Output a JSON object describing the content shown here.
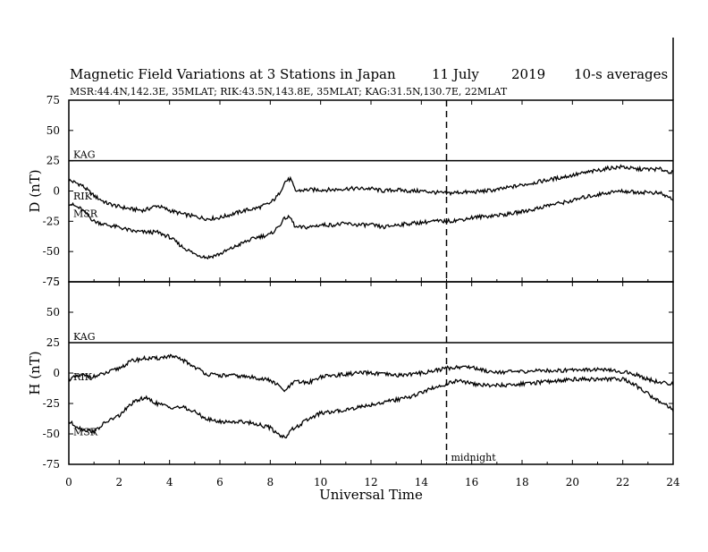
{
  "header": {
    "title": "Magnetic Field Variations at 3 Stations in Japan",
    "date_day": "11 July",
    "date_year": "2019",
    "averaging": "10-s averages",
    "stations_line": "MSR:44.4N,142.3E, 35MLAT;  RIK:43.5N,143.8E, 35MLAT;  KAG:31.5N,130.7E, 22MLAT"
  },
  "midnight_label": "midnight",
  "colors": {
    "line": "#000000",
    "background": "#ffffff"
  },
  "chart_data": [
    {
      "type": "line",
      "panel": "upper",
      "ylabel": "D (nT)",
      "ylim": [
        -75,
        75
      ],
      "yticks": [
        75,
        50,
        25,
        0,
        -25,
        -50,
        -75
      ],
      "xlim": [
        0,
        24
      ],
      "midnight_ut": 15,
      "series": [
        {
          "name": "KAG",
          "x": [
            0,
            24
          ],
          "values": [
            25,
            25
          ]
        },
        {
          "name": "RIK",
          "x": [
            0,
            0.5,
            1,
            1.5,
            2,
            2.5,
            3,
            3.5,
            4,
            4.5,
            5,
            5.5,
            6,
            6.5,
            7,
            7.5,
            8,
            8.3,
            8.6,
            8.8,
            9,
            9.5,
            10,
            10.5,
            11,
            11.5,
            12,
            12.5,
            13,
            13.5,
            14,
            14.5,
            15,
            15.5,
            16,
            16.5,
            17,
            17.5,
            18,
            18.5,
            19,
            19.5,
            20,
            20.5,
            21,
            21.5,
            22,
            22.5,
            23,
            23.5,
            24
          ],
          "values": [
            9,
            5,
            -4,
            -10,
            -13,
            -15,
            -16,
            -12,
            -16,
            -19,
            -21,
            -23,
            -22,
            -19,
            -16,
            -14,
            -10,
            -4,
            8,
            10,
            0,
            1,
            1,
            1,
            2,
            2,
            2,
            0,
            1,
            0,
            0,
            -1,
            -2,
            -1,
            -1,
            0,
            1,
            3,
            5,
            7,
            9,
            11,
            13,
            15,
            17,
            19,
            20,
            18,
            18,
            18,
            15
          ]
        },
        {
          "name": "MSR",
          "x": [
            0,
            0.5,
            1,
            1.5,
            2,
            2.5,
            3,
            3.5,
            4,
            4.5,
            5,
            5.5,
            6,
            6.5,
            7,
            7.5,
            8,
            8.3,
            8.6,
            8.8,
            9,
            9.5,
            10,
            10.5,
            11,
            11.5,
            12,
            12.5,
            13,
            13.5,
            14,
            14.5,
            15,
            15.5,
            16,
            16.5,
            17,
            17.5,
            18,
            18.5,
            19,
            19.5,
            20,
            20.5,
            21,
            21.5,
            22,
            22.5,
            23,
            23.5,
            24
          ],
          "values": [
            -10,
            -15,
            -25,
            -28,
            -30,
            -33,
            -34,
            -34,
            -38,
            -46,
            -52,
            -55,
            -52,
            -47,
            -42,
            -38,
            -36,
            -30,
            -22,
            -22,
            -30,
            -30,
            -28,
            -28,
            -27,
            -28,
            -28,
            -30,
            -28,
            -27,
            -26,
            -25,
            -25,
            -24,
            -22,
            -21,
            -20,
            -19,
            -17,
            -15,
            -12,
            -10,
            -8,
            -5,
            -3,
            -1,
            0,
            -1,
            -1,
            -2,
            -7
          ]
        }
      ]
    },
    {
      "type": "line",
      "panel": "lower",
      "ylabel": "H (nT)",
      "ylim": [
        -75,
        75
      ],
      "yticks": [
        75,
        50,
        25,
        0,
        -25,
        -50,
        -75
      ],
      "xlim": [
        0,
        24
      ],
      "midnight_ut": 15,
      "xlabel": "Universal Time",
      "xticks": [
        0,
        2,
        4,
        6,
        8,
        10,
        12,
        14,
        16,
        18,
        20,
        22,
        24
      ],
      "series": [
        {
          "name": "KAG",
          "x": [
            0,
            24
          ],
          "values": [
            25,
            25
          ]
        },
        {
          "name": "RIK",
          "x": [
            0,
            0.5,
            1,
            1.5,
            2,
            2.5,
            3,
            3.5,
            4,
            4.5,
            5,
            5.5,
            6,
            6.5,
            7,
            7.5,
            8,
            8.3,
            8.6,
            8.8,
            9,
            9.5,
            10,
            10.5,
            11,
            11.5,
            12,
            12.5,
            13,
            13.5,
            14,
            14.5,
            15,
            15.5,
            16,
            16.5,
            17,
            17.5,
            18,
            18.5,
            19,
            19.5,
            20,
            20.5,
            21,
            21.5,
            22,
            22.5,
            23,
            23.5,
            24
          ],
          "values": [
            -5,
            -2,
            -3,
            0,
            4,
            10,
            12,
            12,
            14,
            11,
            5,
            -1,
            -2,
            -2,
            -3,
            -4,
            -6,
            -10,
            -15,
            -10,
            -7,
            -8,
            -3,
            -2,
            -1,
            0,
            0,
            -1,
            -2,
            -1,
            0,
            2,
            4,
            5,
            5,
            2,
            1,
            1,
            1,
            2,
            2,
            2,
            3,
            3,
            3,
            2,
            1,
            -1,
            -5,
            -8,
            -9
          ]
        },
        {
          "name": "MSR",
          "x": [
            0,
            0.5,
            1,
            1.5,
            2,
            2.5,
            3,
            3.5,
            4,
            4.5,
            5,
            5.5,
            6,
            6.5,
            7,
            7.5,
            8,
            8.3,
            8.6,
            8.8,
            9,
            9.5,
            10,
            10.5,
            11,
            11.5,
            12,
            12.5,
            13,
            13.5,
            14,
            14.5,
            15,
            15.5,
            16,
            16.5,
            17,
            17.5,
            18,
            18.5,
            19,
            19.5,
            20,
            20.5,
            21,
            21.5,
            22,
            22.5,
            23,
            23.5,
            24
          ],
          "values": [
            -40,
            -46,
            -48,
            -40,
            -35,
            -25,
            -20,
            -25,
            -28,
            -28,
            -32,
            -38,
            -40,
            -40,
            -40,
            -42,
            -45,
            -50,
            -53,
            -47,
            -45,
            -38,
            -33,
            -32,
            -30,
            -28,
            -26,
            -24,
            -22,
            -20,
            -16,
            -12,
            -9,
            -6,
            -9,
            -10,
            -10,
            -10,
            -9,
            -8,
            -7,
            -6,
            -5,
            -5,
            -5,
            -5,
            -5,
            -10,
            -17,
            -24,
            -30
          ]
        }
      ]
    }
  ]
}
